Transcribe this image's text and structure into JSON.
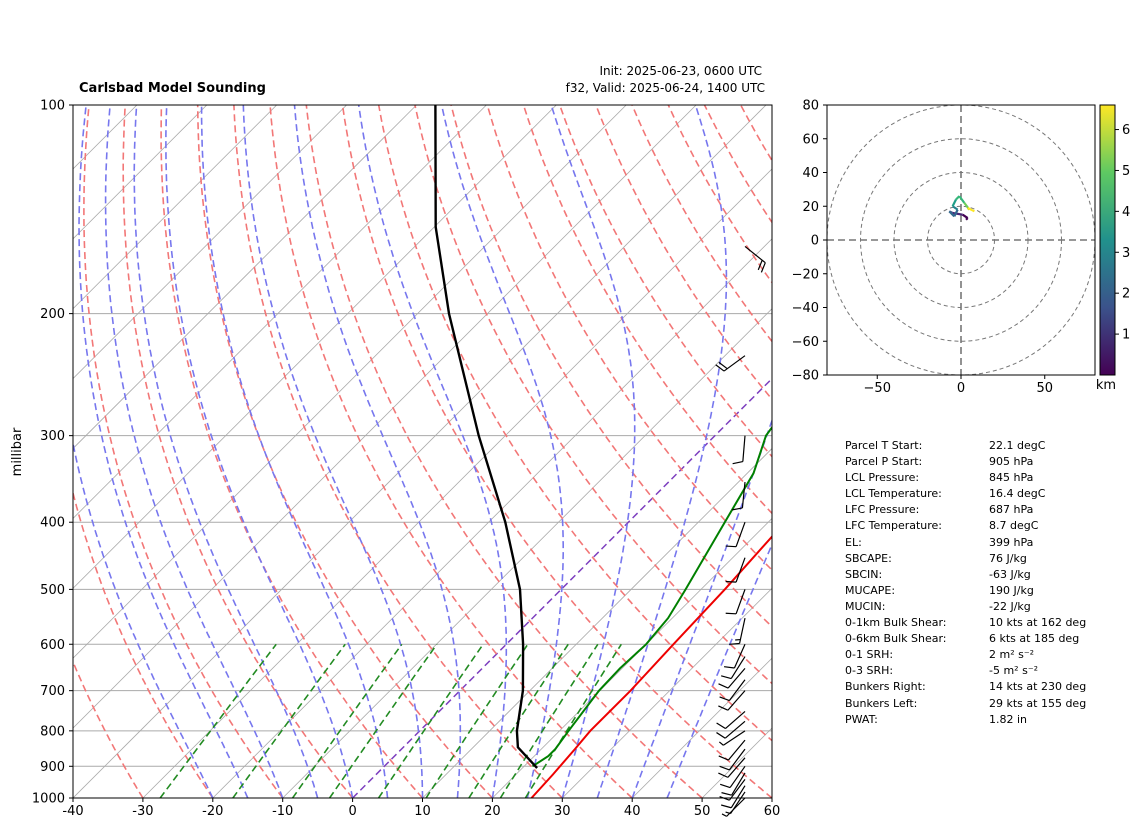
{
  "chart_data": [
    {
      "type": "line",
      "title": "Carlsbad Model Sounding",
      "subtitle_right": [
        "Init: 2025-06-23, 0600 UTC",
        "f32, Valid: 2025-06-24, 1400 UTC"
      ],
      "ylabel": "millibar",
      "xlabel": "",
      "x_ticks": [
        -40,
        -30,
        -20,
        -10,
        0,
        10,
        20,
        30,
        40,
        50,
        60
      ],
      "y_ticks": [
        100,
        200,
        300,
        400,
        500,
        600,
        700,
        800,
        900,
        1000
      ],
      "xlim": [
        -40,
        60
      ],
      "ylim": [
        1000,
        100
      ],
      "y_scale": "log",
      "skew": true,
      "grid": true,
      "temperature": {
        "color": "#ee0000",
        "points": [
          [
            1000,
            25.6
          ],
          [
            925,
            25.3
          ],
          [
            850,
            24.8
          ],
          [
            800,
            24.4
          ],
          [
            700,
            24.4
          ],
          [
            600,
            23.9
          ],
          [
            500,
            23.4
          ],
          [
            400,
            22.4
          ],
          [
            300,
            21.3
          ],
          [
            250,
            19.7
          ],
          [
            200,
            18.5
          ],
          [
            185,
            17.9
          ],
          [
            145,
            17.9
          ],
          [
            120,
            20.5
          ],
          [
            100,
            23.4
          ]
        ]
      },
      "dewpoint": {
        "color": "#008000",
        "points": [
          [
            900,
            21.2
          ],
          [
            870,
            22.0
          ],
          [
            850,
            22.0
          ],
          [
            800,
            21.3
          ],
          [
            700,
            19.9
          ],
          [
            650,
            19.7
          ],
          [
            600,
            20.0
          ],
          [
            550,
            19.4
          ],
          [
            500,
            17.8
          ],
          [
            400,
            13.8
          ],
          [
            340,
            10.9
          ],
          [
            300,
            7.3
          ],
          [
            250,
            5.2
          ],
          [
            200,
            3.9
          ],
          [
            145,
            5.2
          ],
          [
            110,
            -30.4
          ],
          [
            100,
            -23.7
          ]
        ]
      },
      "parcel": {
        "color": "#000000",
        "points": [
          [
            905,
            22.1
          ],
          [
            845,
            16.4
          ],
          [
            800,
            13.9
          ],
          [
            700,
            9.0
          ],
          [
            600,
            2.4
          ],
          [
            500,
            -5.9
          ],
          [
            400,
            -17.6
          ],
          [
            300,
            -33.8
          ],
          [
            200,
            -55.5
          ],
          [
            150,
            -69.8
          ],
          [
            100,
            -87.3
          ]
        ]
      },
      "wind_barbs": [
        {
          "p": 1000,
          "u": 3,
          "v": 3
        },
        {
          "p": 980,
          "u": 4,
          "v": 6
        },
        {
          "p": 960,
          "u": 5,
          "v": 8
        },
        {
          "p": 940,
          "u": 6,
          "v": 8
        },
        {
          "p": 920,
          "u": 6,
          "v": 10
        },
        {
          "p": 900,
          "u": 7,
          "v": 10
        },
        {
          "p": 875,
          "u": 7,
          "v": 8
        },
        {
          "p": 850,
          "u": 6,
          "v": 8
        },
        {
          "p": 825,
          "u": 5,
          "v": 6
        },
        {
          "p": 800,
          "u": 6,
          "v": 4
        },
        {
          "p": 775,
          "u": 7,
          "v": 6
        },
        {
          "p": 750,
          "u": 8,
          "v": 7
        },
        {
          "p": 700,
          "u": 7,
          "v": 8
        },
        {
          "p": 675,
          "u": 6,
          "v": 8
        },
        {
          "p": 650,
          "u": 6,
          "v": 7
        },
        {
          "p": 625,
          "u": 5,
          "v": 8
        },
        {
          "p": 600,
          "u": 4,
          "v": 9
        },
        {
          "p": 550,
          "u": 3,
          "v": 14
        },
        {
          "p": 500,
          "u": 4,
          "v": 11
        },
        {
          "p": 450,
          "u": 4,
          "v": 11
        },
        {
          "p": 400,
          "u": 4,
          "v": 11
        },
        {
          "p": 350,
          "u": 1,
          "v": 10
        },
        {
          "p": 300,
          "u": 1,
          "v": 12
        },
        {
          "p": 230,
          "u": 15,
          "v": 11
        },
        {
          "p": 160,
          "u": -15,
          "v": 12
        }
      ]
    },
    {
      "type": "line",
      "title": "",
      "xlim": [
        -80,
        80
      ],
      "ylim": [
        -80,
        80
      ],
      "x_ticks": [
        -50,
        0,
        50
      ],
      "y_ticks": [
        80,
        60,
        40,
        20,
        0,
        -20,
        -40,
        -60,
        -80
      ],
      "rings": [
        10,
        20,
        30,
        40,
        50,
        60,
        70,
        80,
        90
      ],
      "colorbar": {
        "label": "km",
        "ticks": [
          1,
          2,
          3,
          4,
          5,
          6
        ],
        "range": [
          0,
          6.6
        ],
        "colormap": "viridis"
      },
      "hodograph": {
        "z": [
          0.1,
          0.5,
          1.0,
          1.5,
          2.0,
          2.5,
          3.0,
          3.5,
          4.0,
          4.5,
          5.0,
          5.5,
          6.0,
          6.5
        ],
        "u": [
          3,
          4,
          1,
          -5,
          -7,
          -4,
          -2,
          -5,
          -3,
          -1,
          2,
          5,
          4,
          8
        ],
        "v": [
          12,
          13,
          15,
          16,
          17,
          14,
          18,
          20,
          24,
          26,
          22,
          18,
          19,
          17
        ]
      }
    }
  ],
  "params": [
    {
      "label": "Parcel T Start:",
      "value": "22.1 degC"
    },
    {
      "label": "Parcel P Start:",
      "value": "905 hPa"
    },
    {
      "label": "LCL Pressure:",
      "value": "845 hPa"
    },
    {
      "label": "LCL Temperature:",
      "value": "16.4 degC"
    },
    {
      "label": "LFC Pressure:",
      "value": "687 hPa"
    },
    {
      "label": "LFC Temperature:",
      "value": "8.7 degC"
    },
    {
      "label": "EL:",
      "value": "399 hPa"
    },
    {
      "label": "SBCAPE:",
      "value": "76 J/kg"
    },
    {
      "label": "SBCIN:",
      "value": "-63 J/kg"
    },
    {
      "label": "MUCAPE:",
      "value": "190 J/kg"
    },
    {
      "label": "MUCIN:",
      "value": "-22 J/kg"
    },
    {
      "label": "0-1km Bulk Shear:",
      "value": "10 kts at 162 deg"
    },
    {
      "label": "0-6km Bulk Shear:",
      "value": "6 kts at 185 deg"
    },
    {
      "label": "0-1 SRH:",
      "value": "2 m² s⁻²"
    },
    {
      "label": "0-3 SRH:",
      "value": "-5 m² s⁻²"
    },
    {
      "label": "Bunkers Right:",
      "value": "14 kts at 230 deg"
    },
    {
      "label": "Bunkers Left:",
      "value": "29 kts at 155 deg"
    },
    {
      "label": "PWAT:",
      "value": "1.82 in"
    }
  ],
  "colors": {
    "dry_adiabat": "#f27777",
    "moist_adiabat": "#7777ee",
    "mixing_ratio": "#228b22",
    "isotherm": "#aaaaaa",
    "isotherm_zero": "#7d3fbf",
    "hodo_grid": "#777777"
  }
}
